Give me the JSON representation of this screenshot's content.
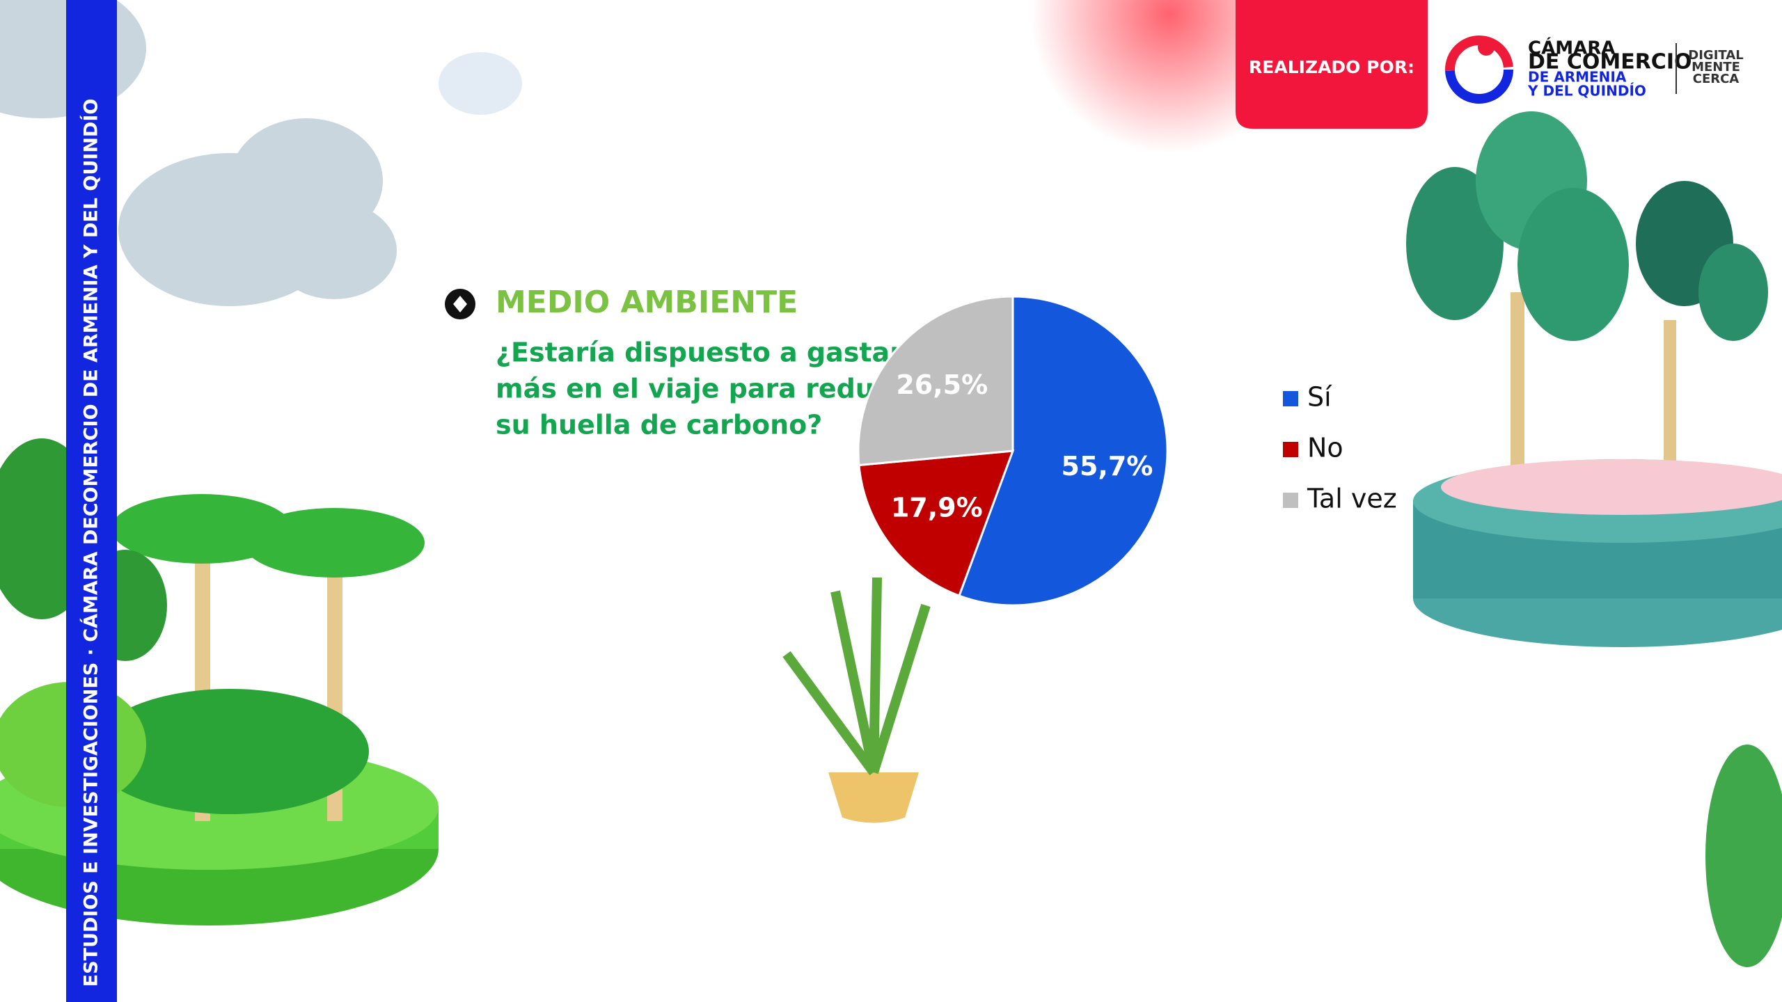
{
  "sidebar": {
    "text": "ESTUDIOS E INVESTIGACIONES · CÁMARA DECOMERCIO DE ARMENIA Y DEL QUINDÍO"
  },
  "header": {
    "credit": "REALIZADO POR:",
    "logo_lines": [
      "CÁMARA",
      "DE COMERCIO",
      "DE ARMENIA",
      "Y DEL QUINDÍO"
    ],
    "brand_lines": [
      "DIGITAL",
      "MENTE",
      "CERCA"
    ]
  },
  "section": {
    "title": "MEDIO AMBIENTE",
    "question_lines": [
      "¿Estaría dispuesto a gastar",
      "más en el viaje para reducir",
      "su huella de carbono?"
    ]
  },
  "chart_data": {
    "type": "pie",
    "categories": [
      "Sí",
      "No",
      "Tal vez"
    ],
    "values": [
      55.7,
      17.9,
      26.5
    ],
    "value_labels": [
      "55,7%",
      "17,9%",
      "26,5%"
    ],
    "colors": [
      "#1257dc",
      "#c00000",
      "#bfbfbf"
    ],
    "legend": "right"
  }
}
